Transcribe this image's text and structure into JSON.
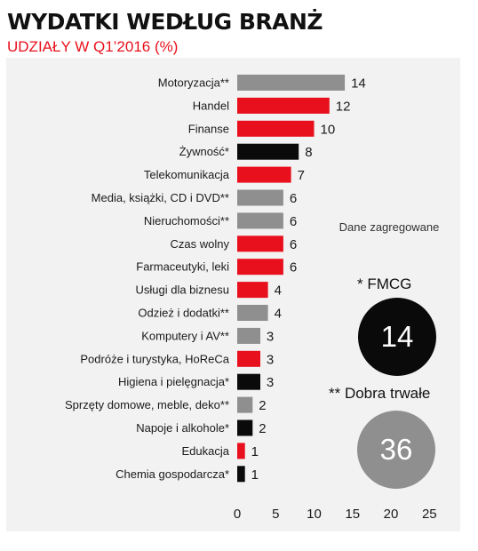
{
  "title": "WYDATKI WEDŁUG BRANŻ",
  "subtitle": "UDZIAŁY W Q1’2016 (%)",
  "colors": {
    "red": "#e8101c",
    "gray": "#8f8f8f",
    "black": "#0a0a0a",
    "title_red": "#e8101c"
  },
  "chart_data": {
    "type": "bar",
    "orientation": "horizontal",
    "categories": [
      "Motoryzacja**",
      "Handel",
      "Finanse",
      "Żywność*",
      "Telekomunikacja",
      "Media, książki, CD i DVD**",
      "Nieruchomości**",
      "Czas wolny",
      "Farmaceutyki, leki",
      "Usługi dla biznesu",
      "Odzież i dodatki**",
      "Komputery i AV**",
      "Podróże i turystyka, HoReCa",
      "Higiena i pielęgnacja*",
      "Sprzęty domowe, meble, deko**",
      "Napoje i alkohole*",
      "Edukacja",
      "Chemia gospodarcza*"
    ],
    "values": [
      14,
      12,
      10,
      8,
      7,
      6,
      6,
      6,
      6,
      4,
      4,
      3,
      3,
      3,
      2,
      2,
      1,
      1
    ],
    "bar_colors": [
      "gray",
      "red",
      "red",
      "black",
      "red",
      "gray",
      "gray",
      "red",
      "red",
      "red",
      "gray",
      "gray",
      "red",
      "black",
      "gray",
      "black",
      "red",
      "black"
    ],
    "value_labels": [
      "14",
      "12",
      "10",
      "8",
      "7",
      "6",
      "6",
      "6",
      "6",
      "4",
      "4",
      "3",
      "3",
      "3",
      "2",
      "2",
      "1",
      "1"
    ],
    "xlim": [
      0,
      25
    ],
    "xticks": [
      0,
      5,
      10,
      15,
      20,
      25
    ],
    "grid": false
  },
  "aggregates": {
    "heading": "Dane zagregowane",
    "fmcg": {
      "label": "* FMCG",
      "value": "14"
    },
    "durable": {
      "label": "** Dobra trwałe",
      "value": "36"
    }
  }
}
